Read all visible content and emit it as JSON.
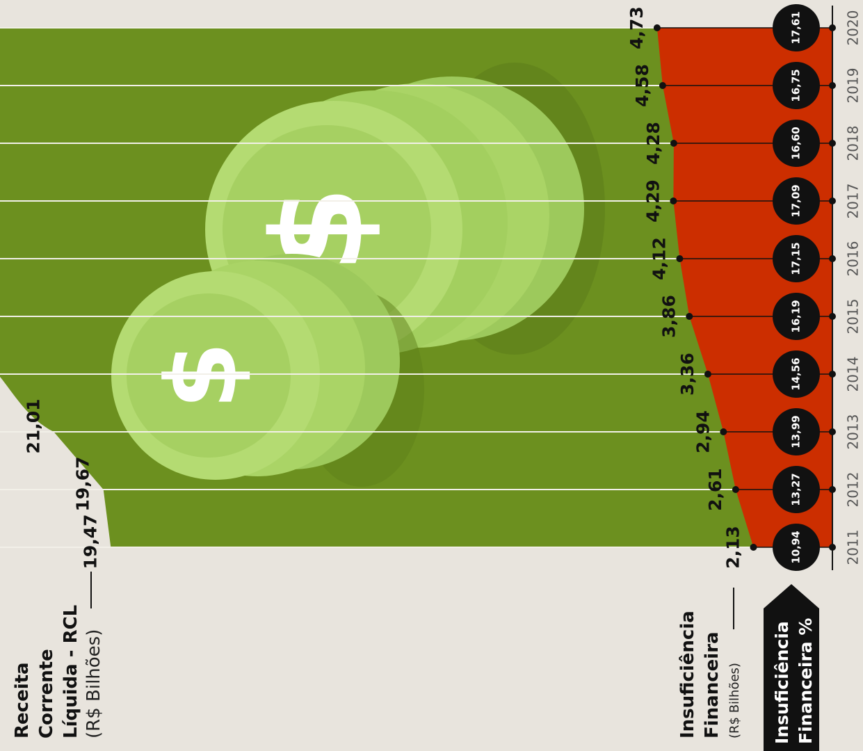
{
  "chart_data": {
    "type": "area",
    "x": [
      2011,
      2012,
      2013,
      2014,
      2015,
      2016,
      2017,
      2018,
      2019,
      2020
    ],
    "ylim": [
      0,
      22.46
    ],
    "grid": true,
    "series": [
      {
        "name": "Receita Corrente Líquida - RCL",
        "unit": "(R$ Bilhões)",
        "color": "#6c901f",
        "values": [
          19.47,
          19.67,
          21.01,
          null,
          null,
          null,
          null,
          null,
          null,
          null
        ],
        "value_labels": [
          "19,47",
          "19,67",
          "21,01",
          null,
          null,
          null,
          null,
          null,
          null,
          null
        ]
      },
      {
        "name": "Insuficiência Financeira",
        "unit": "(R$ Bilhões)",
        "color": "#cc2e00",
        "values": [
          2.13,
          2.61,
          2.94,
          3.36,
          3.86,
          4.12,
          4.29,
          4.28,
          4.58,
          4.73
        ],
        "value_labels": [
          "2,13",
          "2,61",
          "2,94",
          "3,36",
          "3,86",
          "4,12",
          "4,29",
          "4,28",
          "4,58",
          "4,73"
        ]
      },
      {
        "name": "Insuficiência Financeira %",
        "color": "#111111",
        "values": [
          10.94,
          13.27,
          13.99,
          14.56,
          16.19,
          17.15,
          17.09,
          16.6,
          16.75,
          17.61
        ],
        "value_labels": [
          "10,94",
          "13,27",
          "13,99",
          "14,56",
          "16,19",
          "17,15",
          "17,09",
          "16,60",
          "16,75",
          "17,61"
        ]
      }
    ]
  }
}
